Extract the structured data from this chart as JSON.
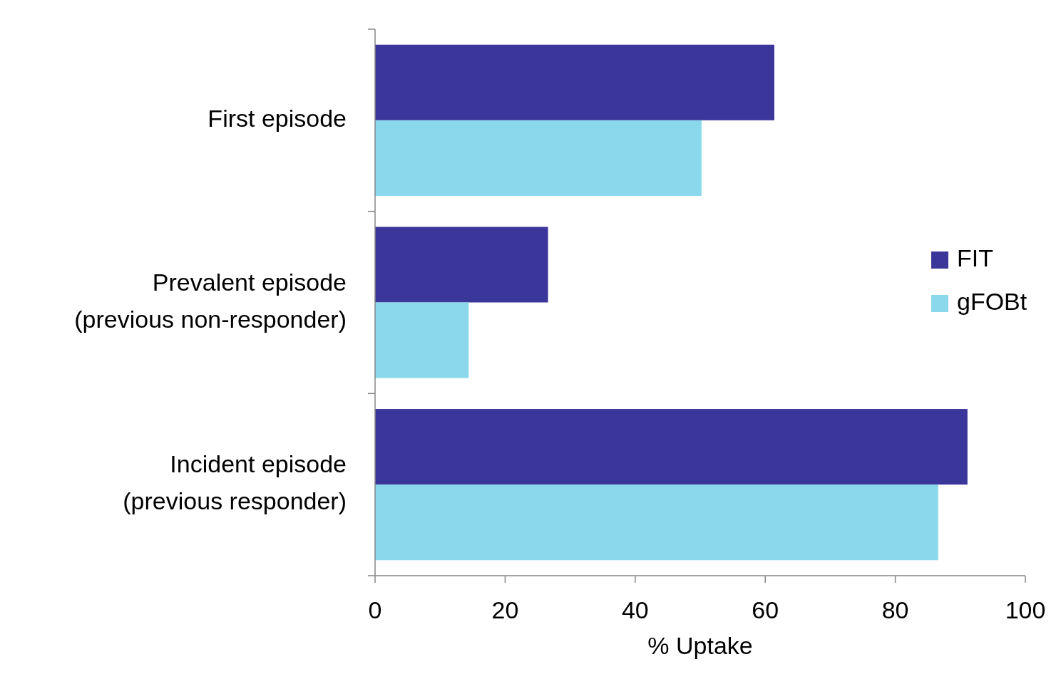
{
  "chart_data": {
    "type": "bar",
    "orientation": "horizontal",
    "xlabel": "% Uptake",
    "categories": [
      "First episode",
      "Prevalent episode (previous non-responder)",
      "Incident episode (previous responder)"
    ],
    "series": [
      {
        "name": "FIT",
        "color": "#3b3699",
        "values": [
          61.4,
          26.6,
          91.1
        ]
      },
      {
        "name": "gFOBt",
        "color": "#89d8eb",
        "values": [
          50.2,
          14.4,
          86.6
        ]
      }
    ],
    "xlim": [
      0,
      100
    ],
    "xticks": [
      0,
      20,
      40,
      60,
      80,
      100
    ],
    "legend": "right",
    "grid": false
  }
}
